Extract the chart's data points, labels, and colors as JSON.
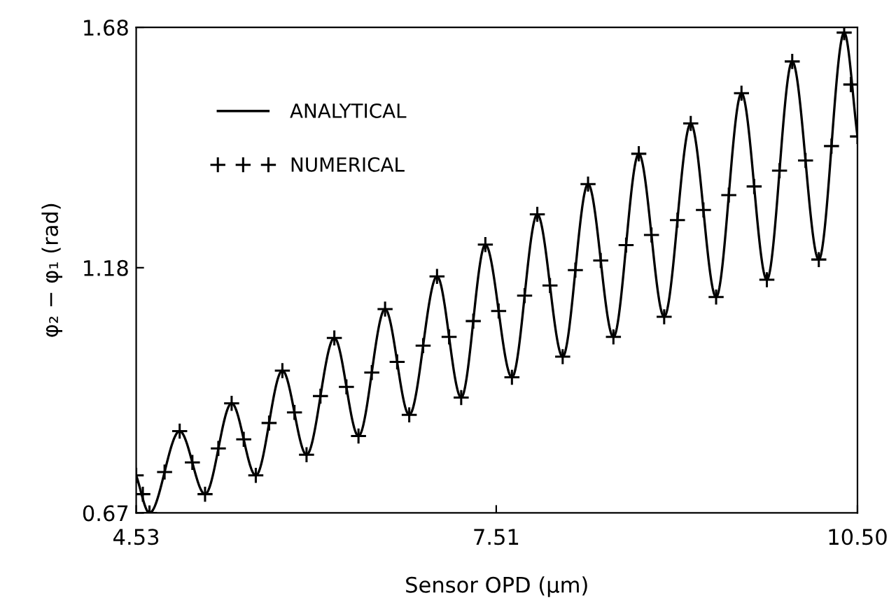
{
  "chart_data": {
    "type": "line",
    "xlabel": "Sensor OPD (μm)",
    "ylabel": "φ₂ − φ₁ (rad)",
    "xlim": [
      4.53,
      10.5
    ],
    "xticks": [
      4.53,
      7.51,
      {
        "value": 10.5,
        "label": "10.50"
      }
    ],
    "ylim": [
      0.67,
      1.68
    ],
    "yticks": [
      0.67,
      1.18,
      1.68
    ],
    "grid": false,
    "legend": "top left",
    "series": [
      {
        "name": "ANALYTICAL",
        "color": "#000000",
        "marker": "none",
        "line_style": "solid",
        "x": [
          4.53,
          4.64,
          4.89,
          5.1,
          5.32,
          5.52,
          5.74,
          5.94,
          6.17,
          6.37,
          6.59,
          6.79,
          7.02,
          7.22,
          7.42,
          7.64,
          7.85,
          8.06,
          8.27,
          8.48,
          8.69,
          8.9,
          9.12,
          9.33,
          9.54,
          9.75,
          9.96,
          10.18,
          10.39,
          10.5
        ],
        "values": [
          0.748,
          0.67,
          0.84,
          0.709,
          0.898,
          0.748,
          0.966,
          0.791,
          1.034,
          0.83,
          1.094,
          0.874,
          1.162,
          0.91,
          1.228,
          0.952,
          1.291,
          0.995,
          1.354,
          1.036,
          1.417,
          1.078,
          1.48,
          1.119,
          1.543,
          1.155,
          1.609,
          1.197,
          1.669,
          1.453
        ]
      },
      {
        "name": "NUMERICAL",
        "type": "scatter",
        "color": "#000000",
        "marker": "cross",
        "x": [
          4.53,
          4.585,
          4.64,
          4.765,
          4.89,
          4.995,
          5.1,
          5.21,
          5.32,
          5.42,
          5.52,
          5.63,
          5.74,
          5.84,
          5.94,
          6.055,
          6.17,
          6.27,
          6.37,
          6.48,
          6.59,
          6.69,
          6.79,
          6.905,
          7.02,
          7.12,
          7.22,
          7.32,
          7.42,
          7.53,
          7.64,
          7.745,
          7.85,
          7.955,
          8.06,
          8.165,
          8.27,
          8.375,
          8.48,
          8.585,
          8.69,
          8.795,
          8.9,
          9.01,
          9.12,
          9.225,
          9.33,
          9.435,
          9.54,
          9.645,
          9.75,
          9.855,
          9.96,
          10.07,
          10.18,
          10.285,
          10.39,
          10.445,
          10.5
        ],
        "values": [
          0.748,
          0.709,
          0.67,
          0.755,
          0.84,
          0.775,
          0.709,
          0.804,
          0.898,
          0.823,
          0.748,
          0.857,
          0.966,
          0.879,
          0.791,
          0.913,
          1.034,
          0.932,
          0.83,
          0.962,
          1.094,
          0.984,
          0.874,
          1.018,
          1.162,
          1.036,
          0.91,
          1.069,
          1.228,
          1.09,
          0.952,
          1.122,
          1.291,
          1.143,
          0.995,
          1.175,
          1.354,
          1.195,
          1.036,
          1.227,
          1.417,
          1.248,
          1.078,
          1.279,
          1.48,
          1.3,
          1.119,
          1.331,
          1.543,
          1.349,
          1.155,
          1.382,
          1.609,
          1.403,
          1.197,
          1.433,
          1.669,
          1.561,
          1.453
        ]
      }
    ]
  }
}
